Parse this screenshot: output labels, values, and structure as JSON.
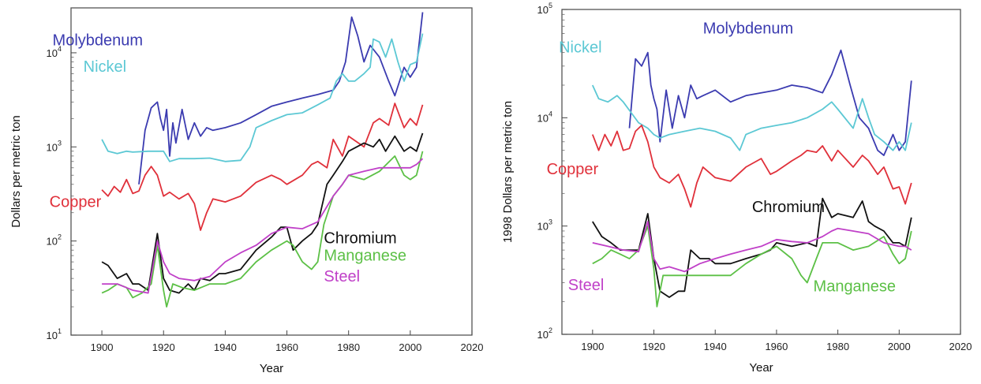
{
  "colors": {
    "Molybdenum": "#3b3bb0",
    "Nickel": "#5cc8d4",
    "Copper": "#e0303a",
    "Chromium": "#111111",
    "Manganese": "#5cc046",
    "Steel": "#c040c8"
  },
  "chart_data": [
    {
      "type": "line",
      "xlabel": "Year",
      "ylabel": "Dollars per metric ton",
      "xlim": [
        1890,
        2020
      ],
      "ylim": [
        10,
        30000
      ],
      "yscale": "log",
      "xticks": [
        1900,
        1920,
        1940,
        1960,
        1980,
        2000,
        2020
      ],
      "yticks": [
        {
          "v": 10,
          "base": "10",
          "exp": "1"
        },
        {
          "v": 100,
          "base": "10",
          "exp": "2"
        },
        {
          "v": 1000,
          "base": "10",
          "exp": "3"
        },
        {
          "v": 10000,
          "base": "10",
          "exp": "4"
        }
      ],
      "series": [
        {
          "name": "Molybdenum",
          "label_pos": [
            1884,
            12000
          ],
          "x": [
            1912,
            1914,
            1916,
            1918,
            1919,
            1920,
            1921,
            1922,
            1923,
            1924,
            1926,
            1928,
            1930,
            1932,
            1934,
            1936,
            1940,
            1945,
            1950,
            1955,
            1960,
            1965,
            1970,
            1975,
            1977,
            1979,
            1981,
            1983,
            1985,
            1987,
            1990,
            1993,
            1995,
            1998,
            2000,
            2002,
            2004
          ],
          "y": [
            400,
            1500,
            2600,
            3000,
            2000,
            1500,
            2500,
            800,
            1800,
            1100,
            2500,
            1200,
            1800,
            1300,
            1600,
            1500,
            1600,
            1800,
            2200,
            2700,
            3000,
            3300,
            3600,
            4000,
            5000,
            8000,
            24000,
            15000,
            8000,
            12000,
            9000,
            5000,
            3500,
            7000,
            5500,
            7000,
            27000
          ]
        },
        {
          "name": "Nickel",
          "label_pos": [
            1894,
            6300
          ],
          "x": [
            1900,
            1902,
            1905,
            1908,
            1910,
            1915,
            1918,
            1920,
            1922,
            1925,
            1930,
            1935,
            1940,
            1945,
            1948,
            1950,
            1955,
            1960,
            1965,
            1970,
            1974,
            1976,
            1978,
            1980,
            1982,
            1985,
            1987,
            1988,
            1990,
            1992,
            1994,
            1996,
            1998,
            2000,
            2002,
            2004
          ],
          "y": [
            1200,
            900,
            850,
            900,
            880,
            900,
            900,
            900,
            700,
            750,
            750,
            760,
            700,
            720,
            1000,
            1600,
            1900,
            2200,
            2300,
            2800,
            3300,
            5000,
            6000,
            5000,
            5000,
            6000,
            7000,
            14000,
            13000,
            9000,
            14000,
            8000,
            5000,
            7500,
            8000,
            16000
          ]
        },
        {
          "name": "Copper",
          "label_pos": [
            1883,
            230
          ],
          "x": [
            1900,
            1902,
            1904,
            1906,
            1908,
            1910,
            1912,
            1914,
            1916,
            1918,
            1920,
            1922,
            1925,
            1928,
            1930,
            1932,
            1934,
            1936,
            1940,
            1945,
            1950,
            1955,
            1958,
            1960,
            1965,
            1968,
            1970,
            1973,
            1975,
            1978,
            1980,
            1985,
            1988,
            1990,
            1993,
            1995,
            1998,
            2000,
            2002,
            2004
          ],
          "y": [
            350,
            300,
            380,
            330,
            450,
            320,
            340,
            500,
            620,
            500,
            300,
            330,
            280,
            320,
            250,
            130,
            200,
            280,
            260,
            300,
            420,
            500,
            450,
            400,
            500,
            650,
            700,
            600,
            1200,
            800,
            1300,
            1000,
            1800,
            2000,
            1700,
            2900,
            1600,
            2000,
            1700,
            2800
          ]
        },
        {
          "name": "Chromium",
          "label_pos": [
            1972,
            95
          ],
          "x": [
            1900,
            1902,
            1905,
            1908,
            1910,
            1912,
            1915,
            1918,
            1920,
            1922,
            1925,
            1928,
            1930,
            1932,
            1935,
            1938,
            1940,
            1945,
            1950,
            1955,
            1958,
            1960,
            1962,
            1965,
            1968,
            1970,
            1973,
            1975,
            1978,
            1980,
            1985,
            1988,
            1990,
            1992,
            1995,
            1998,
            2000,
            2002,
            2004
          ],
          "y": [
            60,
            55,
            40,
            45,
            35,
            35,
            30,
            120,
            40,
            30,
            28,
            35,
            30,
            40,
            38,
            45,
            45,
            50,
            80,
            110,
            140,
            140,
            80,
            100,
            120,
            150,
            400,
            500,
            700,
            900,
            1100,
            1000,
            1200,
            900,
            1300,
            900,
            1000,
            900,
            1400
          ]
        },
        {
          "name": "Manganese",
          "label_pos": [
            1972,
            62
          ],
          "x": [
            1900,
            1902,
            1905,
            1908,
            1910,
            1913,
            1916,
            1918,
            1920,
            1921,
            1923,
            1926,
            1930,
            1935,
            1940,
            1945,
            1950,
            1955,
            1960,
            1962,
            1965,
            1968,
            1970,
            1972,
            1975,
            1978,
            1980,
            1985,
            1990,
            1995,
            1998,
            2000,
            2002,
            2004
          ],
          "y": [
            28,
            30,
            35,
            32,
            25,
            28,
            35,
            90,
            30,
            20,
            35,
            32,
            30,
            35,
            35,
            40,
            60,
            80,
            100,
            90,
            60,
            50,
            60,
            150,
            300,
            400,
            500,
            450,
            550,
            800,
            500,
            450,
            500,
            900
          ]
        },
        {
          "name": "Steel",
          "label_pos": [
            1972,
            37
          ],
          "x": [
            1900,
            1905,
            1910,
            1915,
            1918,
            1920,
            1922,
            1925,
            1930,
            1935,
            1940,
            1945,
            1950,
            1955,
            1960,
            1965,
            1970,
            1975,
            1978,
            1980,
            1985,
            1990,
            1995,
            2000,
            2002,
            2004
          ],
          "y": [
            35,
            35,
            30,
            28,
            100,
            60,
            45,
            40,
            38,
            42,
            60,
            75,
            90,
            120,
            140,
            135,
            160,
            300,
            400,
            500,
            550,
            600,
            600,
            600,
            650,
            750
          ]
        }
      ]
    },
    {
      "type": "line",
      "xlabel": "Year",
      "ylabel": "1998 Dollars per metric ton",
      "xlim": [
        1890,
        2020
      ],
      "ylim": [
        100,
        100000
      ],
      "yscale": "log",
      "xticks": [
        1900,
        1920,
        1940,
        1960,
        1980,
        2000,
        2020
      ],
      "yticks": [
        {
          "v": 100,
          "base": "10",
          "exp": "2"
        },
        {
          "v": 1000,
          "base": "10",
          "exp": "3"
        },
        {
          "v": 10000,
          "base": "10",
          "exp": "4"
        },
        {
          "v": 100000,
          "base": "10",
          "exp": "5"
        }
      ],
      "series": [
        {
          "name": "Molybdenum",
          "label_pos": [
            1936,
            60000
          ],
          "x": [
            1912,
            1914,
            1916,
            1918,
            1919,
            1920,
            1921,
            1922,
            1924,
            1926,
            1928,
            1930,
            1932,
            1934,
            1936,
            1940,
            1945,
            1950,
            1955,
            1960,
            1965,
            1970,
            1975,
            1978,
            1981,
            1984,
            1987,
            1990,
            1993,
            1995,
            1998,
            2000,
            2002,
            2004
          ],
          "y": [
            8000,
            35000,
            30000,
            40000,
            20000,
            15000,
            12000,
            6000,
            18000,
            8000,
            16000,
            10000,
            20000,
            15000,
            16000,
            18000,
            14000,
            16000,
            17000,
            18000,
            20000,
            19000,
            17000,
            25000,
            42000,
            20000,
            10000,
            8000,
            5000,
            4500,
            7000,
            5000,
            6000,
            22000
          ]
        },
        {
          "name": "Nickel",
          "label_pos": [
            1889,
            40000
          ],
          "x": [
            1900,
            1902,
            1905,
            1908,
            1910,
            1915,
            1918,
            1920,
            1922,
            1925,
            1930,
            1935,
            1940,
            1945,
            1948,
            1950,
            1955,
            1960,
            1965,
            1970,
            1975,
            1978,
            1980,
            1985,
            1988,
            1990,
            1992,
            1995,
            1998,
            2000,
            2002,
            2004
          ],
          "y": [
            20000,
            15000,
            14000,
            16000,
            14000,
            9000,
            8000,
            7000,
            6500,
            7000,
            7500,
            8000,
            7500,
            6500,
            5000,
            7000,
            8000,
            8500,
            9000,
            10000,
            12000,
            14000,
            12000,
            8000,
            15000,
            10000,
            7000,
            6000,
            5000,
            6000,
            5000,
            9000
          ]
        },
        {
          "name": "Copper",
          "label_pos": [
            1885,
            3000
          ],
          "x": [
            1900,
            1902,
            1904,
            1906,
            1908,
            1910,
            1912,
            1914,
            1916,
            1918,
            1920,
            1922,
            1925,
            1928,
            1930,
            1932,
            1934,
            1936,
            1940,
            1945,
            1950,
            1955,
            1958,
            1960,
            1965,
            1968,
            1970,
            1973,
            1975,
            1978,
            1980,
            1985,
            1988,
            1990,
            1993,
            1995,
            1998,
            2000,
            2002,
            2004
          ],
          "y": [
            7000,
            5000,
            7000,
            5500,
            7500,
            5000,
            5200,
            7500,
            8500,
            6000,
            3500,
            2800,
            2500,
            3000,
            2200,
            1500,
            2500,
            3500,
            2800,
            2600,
            3500,
            4200,
            3000,
            3200,
            4000,
            4500,
            5000,
            4800,
            5500,
            4000,
            5000,
            3500,
            4500,
            4000,
            3000,
            3500,
            2200,
            2300,
            1600,
            2500
          ]
        },
        {
          "name": "Chromium",
          "label_pos": [
            1952,
            1350
          ],
          "x": [
            1900,
            1903,
            1906,
            1909,
            1912,
            1915,
            1918,
            1920,
            1922,
            1925,
            1928,
            1930,
            1932,
            1935,
            1938,
            1940,
            1945,
            1950,
            1955,
            1958,
            1960,
            1965,
            1970,
            1973,
            1975,
            1978,
            1980,
            1985,
            1988,
            1990,
            1992,
            1995,
            1998,
            2000,
            2002,
            2004
          ],
          "y": [
            1100,
            800,
            700,
            600,
            600,
            600,
            1300,
            500,
            250,
            220,
            250,
            250,
            600,
            500,
            500,
            450,
            450,
            500,
            550,
            600,
            700,
            650,
            700,
            650,
            1800,
            1200,
            1300,
            1200,
            1700,
            1100,
            1000,
            900,
            700,
            700,
            650,
            1200
          ]
        },
        {
          "name": "Manganese",
          "label_pos": [
            1972,
            250
          ],
          "x": [
            1900,
            1903,
            1906,
            1909,
            1912,
            1915,
            1918,
            1920,
            1921,
            1923,
            1926,
            1930,
            1935,
            1940,
            1945,
            1950,
            1955,
            1960,
            1965,
            1968,
            1970,
            1973,
            1975,
            1978,
            1980,
            1985,
            1990,
            1995,
            1998,
            2000,
            2002,
            2004
          ],
          "y": [
            450,
            500,
            600,
            550,
            500,
            600,
            1000,
            400,
            180,
            350,
            350,
            350,
            350,
            350,
            350,
            450,
            550,
            650,
            500,
            350,
            300,
            500,
            700,
            700,
            700,
            600,
            650,
            800,
            550,
            450,
            500,
            900
          ]
        },
        {
          "name": "Steel",
          "label_pos": [
            1892,
            255
          ],
          "x": [
            1900,
            1905,
            1910,
            1915,
            1918,
            1920,
            1922,
            1925,
            1930,
            1935,
            1940,
            1945,
            1950,
            1955,
            1960,
            1965,
            1970,
            1975,
            1978,
            1980,
            1985,
            1990,
            1995,
            2000,
            2002,
            2004
          ],
          "y": [
            700,
            650,
            600,
            580,
            1100,
            500,
            400,
            420,
            380,
            450,
            500,
            550,
            600,
            650,
            750,
            720,
            700,
            800,
            900,
            950,
            900,
            850,
            700,
            650,
            650,
            600
          ]
        }
      ]
    }
  ]
}
